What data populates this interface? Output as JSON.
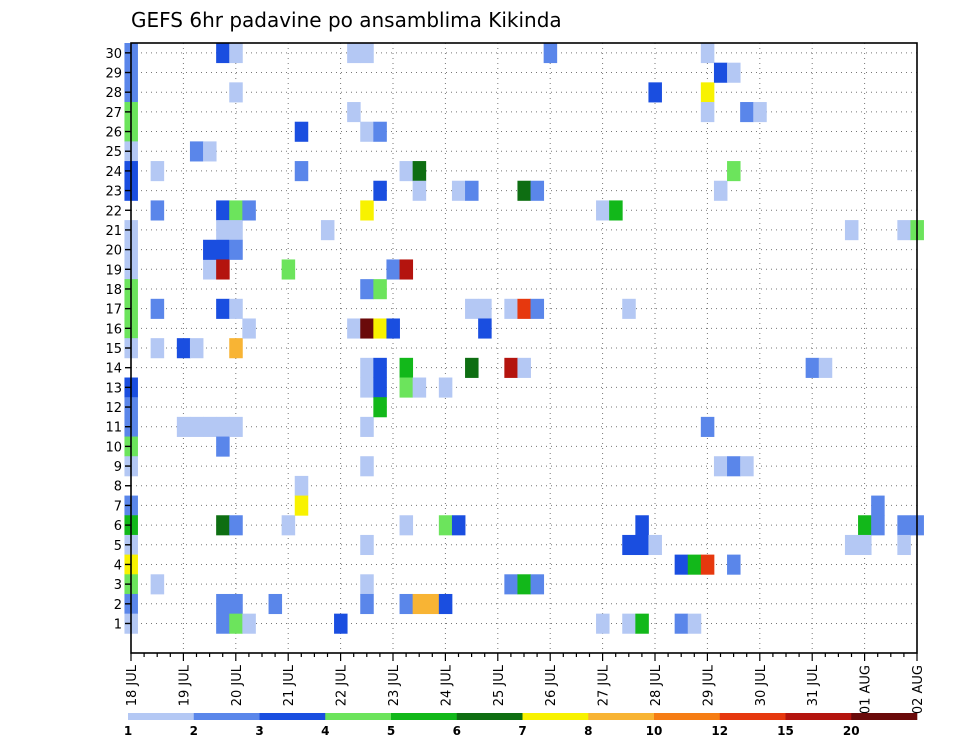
{
  "chart_data": {
    "type": "heatmap",
    "title": "GEFS 6hr padavine po ansamblima Kikinda",
    "y_categories": [
      "1",
      "2",
      "3",
      "4",
      "5",
      "6",
      "7",
      "8",
      "9",
      "10",
      "11",
      "12",
      "13",
      "14",
      "15",
      "16",
      "17",
      "18",
      "19",
      "20",
      "21",
      "22",
      "23",
      "24",
      "25",
      "26",
      "27",
      "28",
      "29",
      "30"
    ],
    "x_tick_labels": [
      "18 JUL",
      "19 JUL",
      "20 JUL",
      "21 JUL",
      "22 JUL",
      "23 JUL",
      "24 JUL",
      "25 JUL",
      "26 JUL",
      "27 JUL",
      "28 JUL",
      "29 JUL",
      "30 JUL",
      "31 JUL",
      "01 AUG",
      "02 AUG"
    ],
    "x_steps_per_day": 4,
    "x_num_steps": 60,
    "grid": true,
    "legend_placement": "bottom",
    "legend_labels": [
      "1",
      "2",
      "3",
      "4",
      "5",
      "6",
      "7",
      "8",
      "10",
      "12",
      "15",
      "20"
    ],
    "colors": [
      "#b4c8f4",
      "#5a86ea",
      "#1a4ee0",
      "#6ce45c",
      "#12b81a",
      "#0e6e12",
      "#f8f200",
      "#f8b434",
      "#f67d14",
      "#e6380e",
      "#b4140e",
      "#6a0a0a"
    ],
    "cells_note_fields": [
      "step",
      "member",
      "level"
    ],
    "cells": [
      [
        0,
        30,
        2
      ],
      [
        0,
        29,
        2
      ],
      [
        0,
        28,
        2
      ],
      [
        0,
        27,
        4
      ],
      [
        0,
        26,
        4
      ],
      [
        0,
        25,
        1
      ],
      [
        0,
        24,
        3
      ],
      [
        0,
        23,
        3
      ],
      [
        0,
        21,
        1
      ],
      [
        0,
        20,
        1
      ],
      [
        0,
        19,
        1
      ],
      [
        0,
        18,
        4
      ],
      [
        0,
        17,
        4
      ],
      [
        0,
        16,
        4
      ],
      [
        0,
        15,
        1
      ],
      [
        0,
        13,
        3
      ],
      [
        0,
        12,
        2
      ],
      [
        0,
        11,
        2
      ],
      [
        0,
        10,
        4
      ],
      [
        0,
        9,
        1
      ],
      [
        0,
        7,
        2
      ],
      [
        0,
        6,
        5
      ],
      [
        0,
        5,
        1
      ],
      [
        0,
        4,
        7
      ],
      [
        0,
        3,
        4
      ],
      [
        0,
        2,
        2
      ],
      [
        0,
        1,
        1
      ],
      [
        2,
        24,
        1
      ],
      [
        2,
        3,
        1
      ],
      [
        2,
        22,
        2
      ],
      [
        2,
        17,
        2
      ],
      [
        2,
        15,
        1
      ],
      [
        4,
        15,
        3
      ],
      [
        4,
        11,
        1
      ],
      [
        5,
        15,
        1
      ],
      [
        5,
        11,
        1
      ],
      [
        5,
        25,
        2
      ],
      [
        6,
        25,
        1
      ],
      [
        6,
        19,
        1
      ],
      [
        6,
        11,
        1
      ],
      [
        6,
        20,
        3
      ],
      [
        7,
        30,
        3
      ],
      [
        7,
        22,
        3
      ],
      [
        7,
        21,
        1
      ],
      [
        7,
        20,
        3
      ],
      [
        7,
        19,
        11
      ],
      [
        7,
        17,
        3
      ],
      [
        7,
        11,
        1
      ],
      [
        7,
        10,
        2
      ],
      [
        7,
        6,
        6
      ],
      [
        7,
        2,
        2
      ],
      [
        7,
        1,
        2
      ],
      [
        8,
        30,
        1
      ],
      [
        8,
        28,
        1
      ],
      [
        8,
        22,
        4
      ],
      [
        8,
        21,
        1
      ],
      [
        8,
        20,
        2
      ],
      [
        8,
        17,
        1
      ],
      [
        8,
        15,
        8
      ],
      [
        8,
        11,
        1
      ],
      [
        8,
        6,
        2
      ],
      [
        8,
        2,
        2
      ],
      [
        8,
        1,
        4
      ],
      [
        9,
        22,
        2
      ],
      [
        9,
        16,
        1
      ],
      [
        9,
        1,
        1
      ],
      [
        11,
        2,
        2
      ],
      [
        12,
        19,
        4
      ],
      [
        12,
        6,
        1
      ],
      [
        13,
        26,
        3
      ],
      [
        13,
        24,
        2
      ],
      [
        13,
        8,
        1
      ],
      [
        13,
        7,
        7
      ],
      [
        15,
        21,
        1
      ],
      [
        16,
        1,
        3
      ],
      [
        17,
        30,
        1
      ],
      [
        17,
        27,
        1
      ],
      [
        17,
        16,
        1
      ],
      [
        18,
        30,
        1
      ],
      [
        18,
        26,
        1
      ],
      [
        18,
        22,
        7
      ],
      [
        18,
        18,
        2
      ],
      [
        18,
        16,
        12
      ],
      [
        18,
        14,
        1
      ],
      [
        18,
        13,
        1
      ],
      [
        18,
        11,
        1
      ],
      [
        18,
        9,
        1
      ],
      [
        18,
        5,
        1
      ],
      [
        18,
        3,
        1
      ],
      [
        18,
        2,
        2
      ],
      [
        19,
        26,
        2
      ],
      [
        19,
        23,
        3
      ],
      [
        19,
        18,
        4
      ],
      [
        19,
        16,
        7
      ],
      [
        19,
        14,
        3
      ],
      [
        19,
        13,
        3
      ],
      [
        19,
        12,
        5
      ],
      [
        20,
        19,
        2
      ],
      [
        20,
        16,
        3
      ],
      [
        21,
        24,
        1
      ],
      [
        21,
        19,
        11
      ],
      [
        21,
        14,
        5
      ],
      [
        21,
        13,
        4
      ],
      [
        21,
        6,
        1
      ],
      [
        21,
        2,
        2
      ],
      [
        22,
        24,
        6
      ],
      [
        22,
        23,
        1
      ],
      [
        22,
        13,
        1
      ],
      [
        22,
        2,
        8
      ],
      [
        23,
        2,
        8
      ],
      [
        24,
        13,
        1
      ],
      [
        24,
        6,
        4
      ],
      [
        24,
        2,
        3
      ],
      [
        25,
        23,
        1
      ],
      [
        25,
        6,
        3
      ],
      [
        26,
        23,
        2
      ],
      [
        26,
        17,
        1
      ],
      [
        26,
        14,
        6
      ],
      [
        27,
        17,
        1
      ],
      [
        27,
        16,
        3
      ],
      [
        29,
        17,
        1
      ],
      [
        29,
        14,
        11
      ],
      [
        29,
        3,
        2
      ],
      [
        30,
        23,
        6
      ],
      [
        30,
        17,
        10
      ],
      [
        30,
        14,
        1
      ],
      [
        30,
        3,
        5
      ],
      [
        31,
        23,
        2
      ],
      [
        31,
        17,
        2
      ],
      [
        31,
        3,
        2
      ],
      [
        32,
        30,
        2
      ],
      [
        36,
        22,
        1
      ],
      [
        36,
        1,
        1
      ],
      [
        37,
        22,
        5
      ],
      [
        38,
        17,
        1
      ],
      [
        38,
        5,
        3
      ],
      [
        38,
        1,
        1
      ],
      [
        39,
        6,
        3
      ],
      [
        39,
        5,
        3
      ],
      [
        39,
        1,
        5
      ],
      [
        40,
        28,
        3
      ],
      [
        40,
        5,
        1
      ],
      [
        42,
        4,
        3
      ],
      [
        42,
        1,
        2
      ],
      [
        43,
        4,
        5
      ],
      [
        43,
        1,
        1
      ],
      [
        44,
        30,
        1
      ],
      [
        44,
        28,
        7
      ],
      [
        44,
        27,
        1
      ],
      [
        44,
        11,
        2
      ],
      [
        44,
        4,
        10
      ],
      [
        45,
        29,
        3
      ],
      [
        45,
        23,
        1
      ],
      [
        45,
        9,
        1
      ],
      [
        46,
        29,
        1
      ],
      [
        46,
        24,
        4
      ],
      [
        46,
        9,
        2
      ],
      [
        46,
        4,
        2
      ],
      [
        47,
        27,
        2
      ],
      [
        47,
        9,
        1
      ],
      [
        48,
        27,
        1
      ],
      [
        52,
        14,
        2
      ],
      [
        53,
        14,
        1
      ],
      [
        55,
        21,
        1
      ],
      [
        55,
        5,
        1
      ],
      [
        56,
        6,
        5
      ],
      [
        56,
        5,
        1
      ],
      [
        57,
        7,
        2
      ],
      [
        57,
        6,
        2
      ],
      [
        59,
        21,
        1
      ],
      [
        59,
        6,
        2
      ],
      [
        59,
        5,
        1
      ],
      [
        60,
        21,
        4
      ],
      [
        60,
        6,
        2
      ]
    ]
  }
}
